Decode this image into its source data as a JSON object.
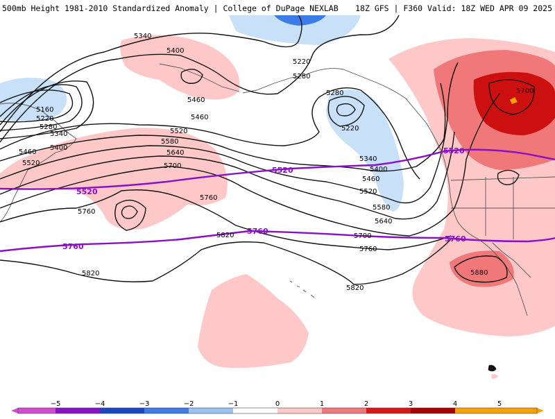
{
  "header": {
    "title": "500mb Height 1981-2010 Standardized Anomaly | College of DuPage NEXLAB",
    "run": "18Z GFS | F360 Valid: 18Z WED APR 09 2025"
  },
  "colors": {
    "black_contour": "#111111",
    "purple_contour": "#8a10c8",
    "coast": "#555555"
  },
  "contours": {
    "black": [
      "5160",
      "5220",
      "5280",
      "5340",
      "5400",
      "5460",
      "5520",
      "5580",
      "5640",
      "5700",
      "5760",
      "5820",
      "5880"
    ],
    "highlight": [
      "5520",
      "5760"
    ]
  },
  "colorbar": {
    "ticks": [
      "−5",
      "−4",
      "−3",
      "−2",
      "−1",
      "0",
      "1",
      "2",
      "3",
      "4",
      "5"
    ],
    "colors": [
      "#d24bd2",
      "#8a13c9",
      "#1a48c0",
      "#3d7ce6",
      "#9cc4f2",
      "#ffffff",
      "#ffc8c8",
      "#f07878",
      "#d81818",
      "#a80000",
      "#f6a300"
    ]
  }
}
